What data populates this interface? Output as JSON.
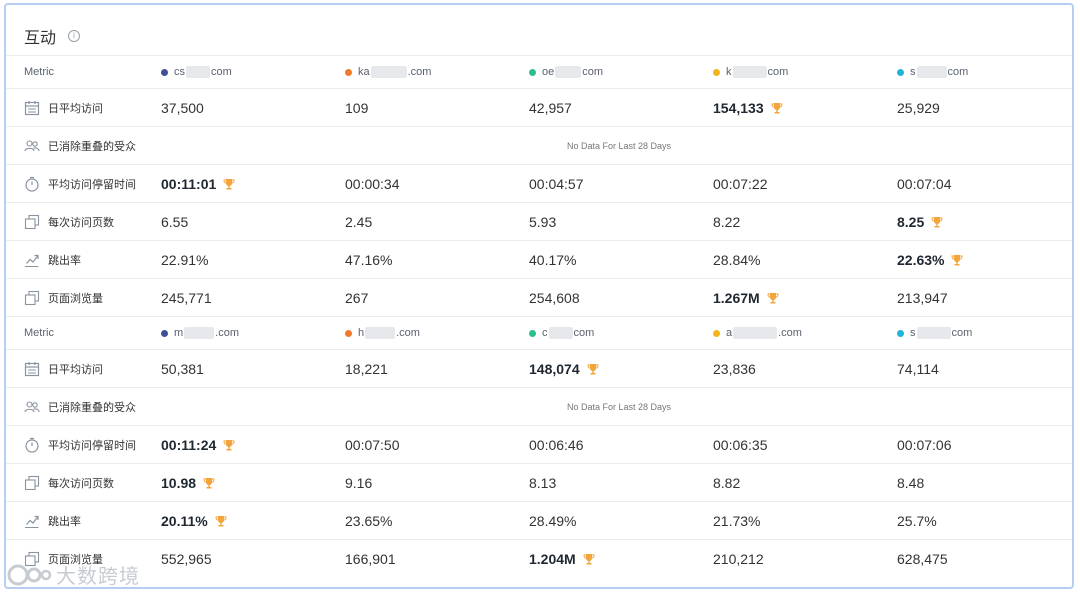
{
  "panel": {
    "title": "互动"
  },
  "header_label": "Metric",
  "no_data_text": "No Data For Last 28 Days",
  "metrics": {
    "daily_visits": "日平均访问",
    "audience": "已消除重叠的受众",
    "duration": "平均访问停留时间",
    "pages": "每次访问页数",
    "bounce": "跳出率",
    "pageviews": "页面浏览量"
  },
  "groups": [
    {
      "sites": [
        {
          "prefix": "cs",
          "suffix": "com",
          "color": "#3f4f9a"
        },
        {
          "prefix": "ka",
          "suffix": ".com",
          "color": "#f07a2b"
        },
        {
          "prefix": "oe",
          "suffix": "com",
          "color": "#2bbf8f"
        },
        {
          "prefix": "k",
          "suffix": "com",
          "color": "#f5b21f"
        },
        {
          "prefix": "s",
          "suffix": "com",
          "color": "#22b4d6"
        }
      ],
      "rows": {
        "daily_visits": [
          "37,500",
          "109",
          "42,957",
          "154,133",
          "25,929"
        ],
        "duration": [
          "00:11:01",
          "00:00:34",
          "00:04:57",
          "00:07:22",
          "00:07:04"
        ],
        "pages": [
          "6.55",
          "2.45",
          "5.93",
          "8.22",
          "8.25"
        ],
        "bounce": [
          "22.91%",
          "47.16%",
          "40.17%",
          "28.84%",
          "22.63%"
        ],
        "pageviews": [
          "245,771",
          "267",
          "254,608",
          "1.267M",
          "213,947"
        ]
      },
      "winners": {
        "daily_visits": 3,
        "duration": 0,
        "pages": 4,
        "bounce": 4,
        "pageviews": 3
      }
    },
    {
      "sites": [
        {
          "prefix": "m",
          "suffix": ".com",
          "color": "#3f4f9a"
        },
        {
          "prefix": "h",
          "suffix": ".com",
          "color": "#f07a2b"
        },
        {
          "prefix": "c",
          "suffix": "com",
          "color": "#2bbf8f"
        },
        {
          "prefix": "a",
          "suffix": ".com",
          "color": "#f5b21f"
        },
        {
          "prefix": "s",
          "suffix": "com",
          "color": "#22b4d6"
        }
      ],
      "rows": {
        "daily_visits": [
          "50,381",
          "18,221",
          "148,074",
          "23,836",
          "74,114"
        ],
        "duration": [
          "00:11:24",
          "00:07:50",
          "00:06:46",
          "00:06:35",
          "00:07:06"
        ],
        "pages": [
          "10.98",
          "9.16",
          "8.13",
          "8.82",
          "8.48"
        ],
        "bounce": [
          "20.11%",
          "23.65%",
          "28.49%",
          "21.73%",
          "25.7%"
        ],
        "pageviews": [
          "552,965",
          "166,901",
          "1.204M",
          "210,212",
          "628,475"
        ]
      },
      "winners": {
        "daily_visits": 2,
        "duration": 0,
        "pages": 0,
        "bounce": 0,
        "pageviews": 2
      }
    }
  ],
  "watermark": "大数跨境",
  "colors": {
    "trophy": "#f3a43b",
    "border": "#b8cdf3"
  }
}
